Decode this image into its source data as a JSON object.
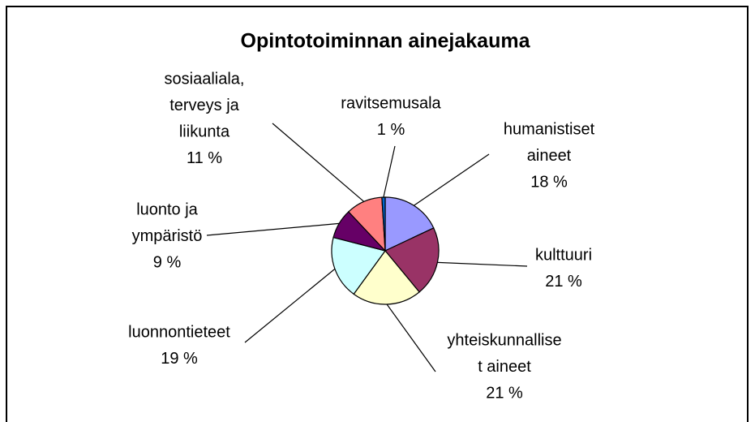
{
  "chart_data": {
    "type": "pie",
    "title": "Opintotoiminnan ainejakauma",
    "categories": [
      [
        "humanistiset",
        "aineet"
      ],
      [
        "kulttuuri"
      ],
      [
        "yhteiskunnallise",
        "t aineet"
      ],
      [
        "luonnontieteet"
      ],
      [
        "luonto ja",
        "ympäristö"
      ],
      [
        "sosiaaliala,",
        "terveys ja",
        "liikunta"
      ],
      [
        "ravitsemusala"
      ]
    ],
    "values": [
      18,
      21,
      21,
      19,
      9,
      11,
      1
    ],
    "value_labels": [
      "18 %",
      "21 %",
      "21 %",
      "19 %",
      "9 %",
      "11 %",
      "1 %"
    ],
    "colors": [
      "#9999ff",
      "#993366",
      "#ffffcc",
      "#ccffff",
      "#660066",
      "#ff8080",
      "#0066cc"
    ]
  }
}
